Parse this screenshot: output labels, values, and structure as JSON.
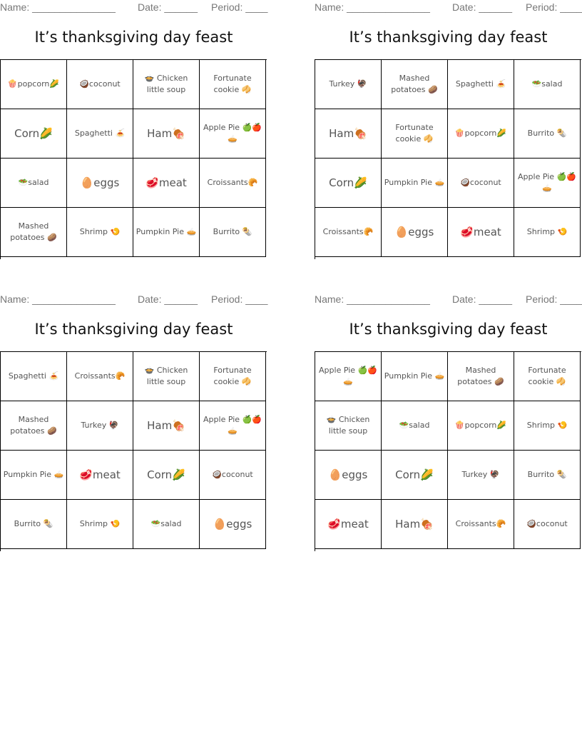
{
  "header": {
    "name": "Name: _______________",
    "date": "Date: ______",
    "period": "Period: ____"
  },
  "title": "It’s thanksgiving day feast",
  "cards": [
    {
      "cells": [
        {
          "text": "🍿popcorn🌽",
          "big": false
        },
        {
          "text": "🥥coconut",
          "big": false
        },
        {
          "text": "🍲 Chicken little soup",
          "big": false
        },
        {
          "text": "Fortunate cookie 🥠",
          "big": false
        },
        {
          "text": "Corn🌽",
          "big": true
        },
        {
          "text": "Spaghetti 🍝",
          "big": false
        },
        {
          "text": "Ham🍖",
          "big": true
        },
        {
          "text": "Apple Pie 🍏🍎🥧",
          "big": false
        },
        {
          "text": "🥗salad",
          "big": false
        },
        {
          "text": "🥚eggs",
          "big": true
        },
        {
          "text": "🥩meat",
          "big": true
        },
        {
          "text": "Croissants🥐",
          "big": false
        },
        {
          "text": "Mashed potatoes 🥔",
          "big": false
        },
        {
          "text": "Shrimp 🍤",
          "big": false
        },
        {
          "text": "Pumpkin Pie 🥧",
          "big": false
        },
        {
          "text": "Burrito 🌯",
          "big": false
        }
      ]
    },
    {
      "cells": [
        {
          "text": "Turkey 🦃",
          "big": false
        },
        {
          "text": "Mashed potatoes 🥔",
          "big": false
        },
        {
          "text": "Spaghetti 🍝",
          "big": false
        },
        {
          "text": "🥗salad",
          "big": false
        },
        {
          "text": "Ham🍖",
          "big": true
        },
        {
          "text": "Fortunate cookie 🥠",
          "big": false
        },
        {
          "text": "🍿popcorn🌽",
          "big": false
        },
        {
          "text": "Burrito 🌯",
          "big": false
        },
        {
          "text": "Corn🌽",
          "big": true
        },
        {
          "text": "Pumpkin Pie 🥧",
          "big": false
        },
        {
          "text": "🥥coconut",
          "big": false
        },
        {
          "text": "Apple Pie 🍏🍎🥧",
          "big": false
        },
        {
          "text": "Croissants🥐",
          "big": false
        },
        {
          "text": "🥚eggs",
          "big": true
        },
        {
          "text": "🥩meat",
          "big": true
        },
        {
          "text": "Shrimp 🍤",
          "big": false
        }
      ]
    },
    {
      "cells": [
        {
          "text": "Spaghetti 🍝",
          "big": false
        },
        {
          "text": "Croissants🥐",
          "big": false
        },
        {
          "text": "🍲 Chicken little soup",
          "big": false
        },
        {
          "text": "Fortunate cookie 🥠",
          "big": false
        },
        {
          "text": "Mashed potatoes 🥔",
          "big": false
        },
        {
          "text": "Turkey 🦃",
          "big": false
        },
        {
          "text": "Ham🍖",
          "big": true
        },
        {
          "text": "Apple Pie 🍏🍎🥧",
          "big": false
        },
        {
          "text": "Pumpkin Pie 🥧",
          "big": false
        },
        {
          "text": "🥩meat",
          "big": true
        },
        {
          "text": "Corn🌽",
          "big": true
        },
        {
          "text": "🥥coconut",
          "big": false
        },
        {
          "text": "Burrito 🌯",
          "big": false
        },
        {
          "text": "Shrimp 🍤",
          "big": false
        },
        {
          "text": "🥗salad",
          "big": false
        },
        {
          "text": "🥚eggs",
          "big": true
        }
      ]
    },
    {
      "cells": [
        {
          "text": "Apple Pie 🍏🍎🥧",
          "big": false
        },
        {
          "text": "Pumpkin Pie 🥧",
          "big": false
        },
        {
          "text": "Mashed potatoes 🥔",
          "big": false
        },
        {
          "text": "Fortunate cookie 🥠",
          "big": false
        },
        {
          "text": "🍲 Chicken little soup",
          "big": false
        },
        {
          "text": "🥗salad",
          "big": false
        },
        {
          "text": "🍿popcorn🌽",
          "big": false
        },
        {
          "text": "Shrimp 🍤",
          "big": false
        },
        {
          "text": "🥚eggs",
          "big": true
        },
        {
          "text": "Corn🌽",
          "big": true
        },
        {
          "text": "Turkey 🦃",
          "big": false
        },
        {
          "text": "Burrito 🌯",
          "big": false
        },
        {
          "text": "🥩meat",
          "big": true
        },
        {
          "text": "Ham🍖",
          "big": true
        },
        {
          "text": "Croissants🥐",
          "big": false
        },
        {
          "text": "🥥coconut",
          "big": false
        }
      ]
    }
  ]
}
